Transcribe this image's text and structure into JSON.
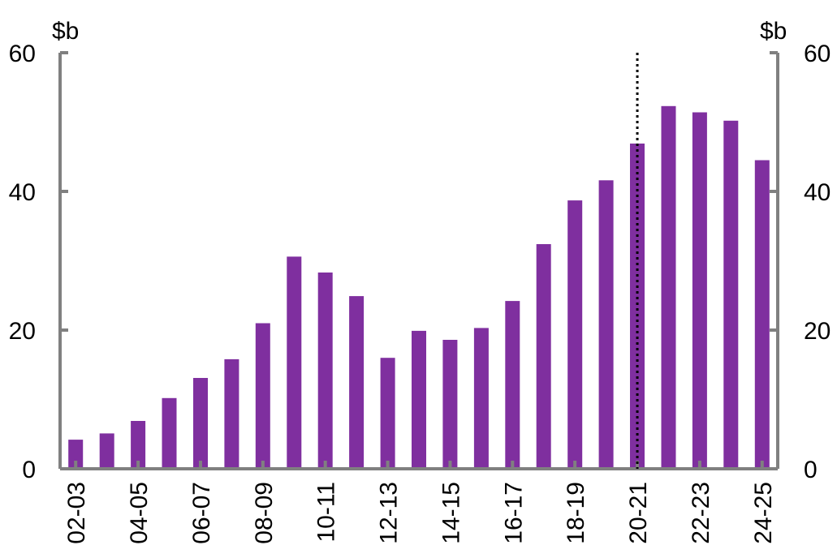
{
  "chart_data": {
    "type": "bar",
    "left_unit": "$b",
    "right_unit": "$b",
    "categories": [
      "02-03",
      "03-04",
      "04-05",
      "05-06",
      "06-07",
      "07-08",
      "08-09",
      "09-10",
      "10-11",
      "11-12",
      "12-13",
      "13-14",
      "14-15",
      "15-16",
      "16-17",
      "17-18",
      "18-19",
      "19-20",
      "20-21",
      "21-22",
      "22-23",
      "23-24",
      "24-25"
    ],
    "x_tick_labels": [
      "02-03",
      "04-05",
      "06-07",
      "08-09",
      "10-11",
      "12-13",
      "14-15",
      "16-17",
      "18-19",
      "20-21",
      "22-23",
      "24-25"
    ],
    "values": [
      4.2,
      5.1,
      6.9,
      10.2,
      13.1,
      15.8,
      21.0,
      30.6,
      28.3,
      24.9,
      16.0,
      19.9,
      18.6,
      20.3,
      24.2,
      32.4,
      38.7,
      41.6,
      46.9,
      52.3,
      51.4,
      50.2,
      44.5
    ],
    "ylim": [
      0,
      60
    ],
    "yticks": [
      "0",
      "20",
      "40",
      "60"
    ],
    "bar_color": "#7F2F9F",
    "axis_color": "#808080",
    "divider_after_category": "20-21",
    "divider_style": "dotted"
  }
}
